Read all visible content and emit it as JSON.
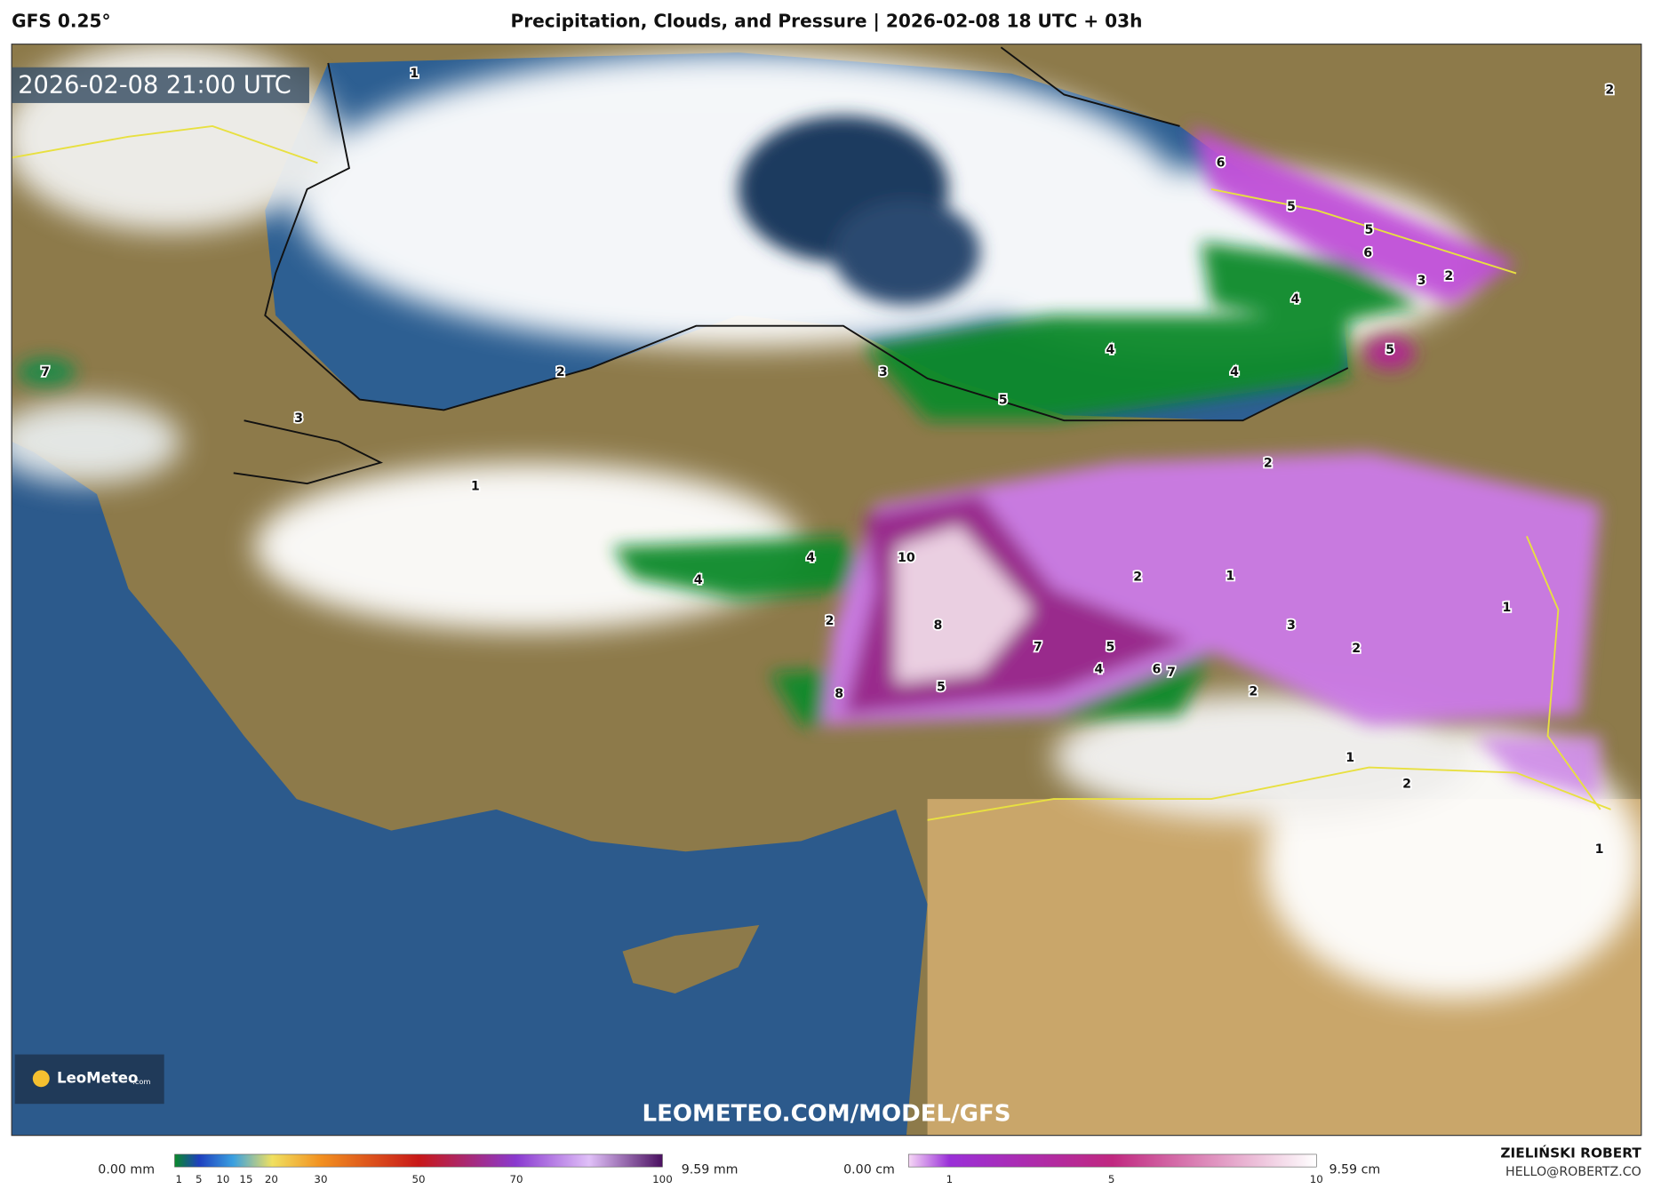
{
  "header": {
    "model": "GFS 0.25°",
    "title": "Precipitation, Clouds, and Pressure | 2026-02-08 18 UTC + 03h"
  },
  "map": {
    "timestamp": "2026-02-08 21:00 UTC",
    "logo": "LeoMeteo",
    "logo_suffix": ".com",
    "watermark": "LEOMETEO.COM/MODEL/GFS",
    "labels": [
      1,
      2,
      6,
      5,
      5,
      6,
      3,
      2,
      4,
      7,
      2,
      3,
      4,
      4,
      5,
      5,
      3,
      1,
      2,
      10,
      4,
      4,
      2,
      1,
      1,
      2,
      8,
      3,
      2,
      7,
      5,
      4,
      6,
      7,
      5,
      8,
      2,
      1,
      2,
      1
    ]
  },
  "legend": {
    "rain": {
      "min": "0.00 mm",
      "max": "9.59 mm",
      "ticks": [
        1,
        5,
        10,
        15,
        20,
        30,
        50,
        70,
        100
      ]
    },
    "snow": {
      "min": "0.00 cm",
      "max": "9.59 cm",
      "ticks": [
        1,
        5,
        10
      ]
    }
  },
  "footer": {
    "author": "ZIELIŃSKI ROBERT",
    "email": "HELLO@ROBERTZ.CO"
  }
}
